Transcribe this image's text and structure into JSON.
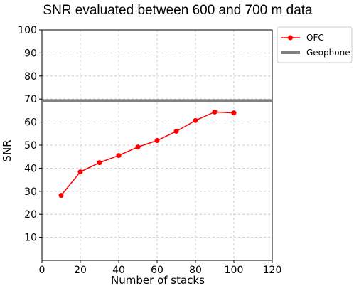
{
  "chart_data": {
    "type": "line",
    "title": "SNR evaluated between 600 and 700 m data",
    "xlabel": "Number of stacks",
    "ylabel": "SNR",
    "xlim": [
      0,
      120
    ],
    "ylim": [
      0,
      100
    ],
    "xticks": [
      0,
      20,
      40,
      60,
      80,
      100,
      120
    ],
    "yticks": [
      10,
      20,
      30,
      40,
      50,
      60,
      70,
      80,
      90,
      100
    ],
    "grid": true,
    "legend_position": "outside-right-top",
    "series": [
      {
        "name": "OFC",
        "color": "#ff0000",
        "marker": "circle",
        "x": [
          10,
          20,
          30,
          40,
          50,
          60,
          70,
          80,
          90,
          100
        ],
        "y": [
          28.2,
          38.4,
          42.4,
          45.5,
          49.2,
          52.0,
          56.0,
          60.7,
          64.4,
          64.0
        ]
      },
      {
        "name": "Geophone",
        "color": "#808080",
        "style": "horizontal-line",
        "y": 69.3
      }
    ]
  }
}
